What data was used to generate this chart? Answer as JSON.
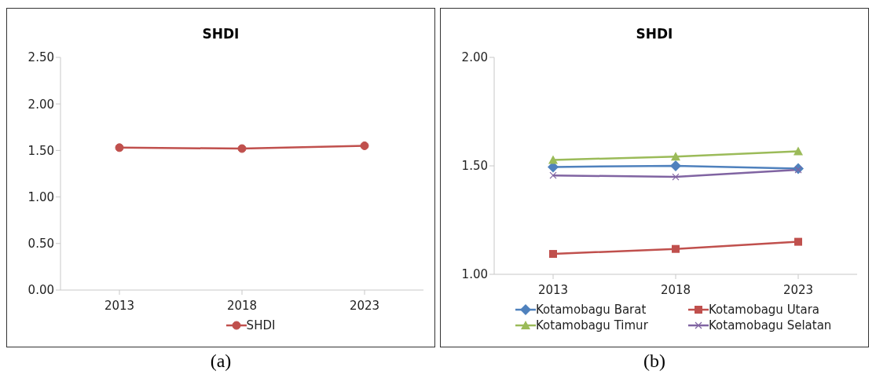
{
  "chart_data": [
    {
      "type": "line",
      "title": "SHDI",
      "categories": [
        "2013",
        "2018",
        "2023"
      ],
      "series": [
        {
          "name": "SHDI",
          "color": "#c0504d",
          "values": [
            1.53,
            1.52,
            1.55
          ],
          "marker": "circle"
        }
      ],
      "ylim": [
        0,
        2.5
      ],
      "yticks": [
        {
          "value": 0,
          "label": "0.00"
        },
        {
          "value": 0.5,
          "label": "0.50"
        },
        {
          "value": 1,
          "label": "1.00"
        },
        {
          "value": 1.5,
          "label": "1.50"
        },
        {
          "value": 2,
          "label": "2.00"
        },
        {
          "value": 2.5,
          "label": "2.50"
        }
      ],
      "grid": false,
      "legend": "bottom",
      "annotations": [
        "(a)"
      ]
    },
    {
      "type": "line",
      "title": "SHDI",
      "categories": [
        "2013",
        "2018",
        "2023"
      ],
      "series": [
        {
          "name": "Kotamobagu Barat",
          "color": "#4f81bd",
          "values": [
            1.495,
            1.5,
            1.487
          ],
          "marker": "diamond"
        },
        {
          "name": "Kotamobagu Utara",
          "color": "#c0504d",
          "values": [
            1.094,
            1.117,
            1.15
          ],
          "marker": "square"
        },
        {
          "name": "Kotamobagu Timur",
          "color": "#9bbb59",
          "values": [
            1.527,
            1.543,
            1.567
          ],
          "marker": "triangle"
        },
        {
          "name": "Kotamobagu Selatan",
          "color": "#8064a2",
          "values": [
            1.456,
            1.449,
            1.482
          ],
          "marker": "cross"
        }
      ],
      "ylim": [
        1,
        2
      ],
      "yticks": [
        {
          "value": 1,
          "label": "1.00"
        },
        {
          "value": 1.5,
          "label": "1.50"
        },
        {
          "value": 2,
          "label": "2.00"
        }
      ],
      "grid": false,
      "legend": "bottom",
      "annotations": [
        "(b)"
      ]
    }
  ]
}
